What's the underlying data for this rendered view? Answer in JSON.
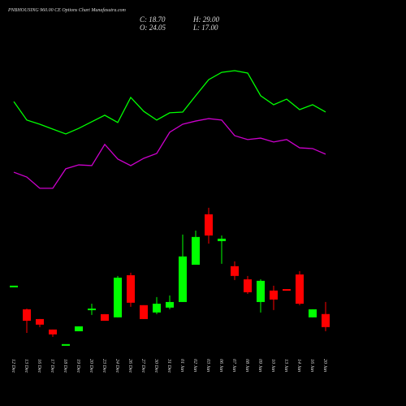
{
  "chart_data": {
    "type": "candlestick",
    "title": "PNBHOUSING 960.00 CE Options Chart Munafasutra.com",
    "header": [
      "C: 18.70",
      "H: 29.00",
      "O: 24.05",
      "L: 17.00"
    ],
    "categories": [
      "12 Dec",
      "13 Dec",
      "16 Dec",
      "17 Dec",
      "18 Dec",
      "19 Dec",
      "20 Dec",
      "23 Dec",
      "24 Dec",
      "26 Dec",
      "27 Dec",
      "30 Dec",
      "31 Dec",
      "01 Jan",
      "02 Jan",
      "03 Jan",
      "06 Jan",
      "07 Jan",
      "08 Jan",
      "09 Jan",
      "10 Jan",
      "13 Jan",
      "14 Jan",
      "16 Jan",
      "20 Jan"
    ],
    "open": [
      35.7,
      26,
      22,
      17.7,
      11.7,
      17,
      26.3,
      24,
      22.7,
      40,
      27.7,
      24.7,
      26.7,
      29,
      44.3,
      65,
      54,
      43.7,
      38.3,
      29,
      33.7,
      34.3,
      40.3,
      22.7,
      24.05
    ],
    "high": [
      35.7,
      26.3,
      22,
      17.7,
      11.7,
      19,
      28.3,
      24,
      39.7,
      41,
      27.7,
      31,
      31.7,
      56.7,
      58.3,
      67.7,
      56.3,
      45.7,
      39.7,
      38.3,
      35.7,
      34.3,
      41.7,
      26,
      29.0
    ],
    "low": [
      35.7,
      16.3,
      18.7,
      14.7,
      11.7,
      17,
      23.7,
      21.3,
      22.7,
      27,
      22,
      24,
      26,
      29,
      44.3,
      53,
      44.7,
      38,
      32.3,
      24.7,
      25.7,
      34,
      27.7,
      22.7,
      17.0
    ],
    "close": [
      35.7,
      21.3,
      19.7,
      15.7,
      11.7,
      19,
      26.3,
      21.3,
      39,
      28.7,
      22,
      28.3,
      29,
      47.7,
      55.7,
      56.3,
      55,
      39.7,
      33,
      37.7,
      30,
      34,
      28.3,
      26,
      18.7
    ],
    "up_color": "#00ff00",
    "down_color": "#ff0000",
    "lines": [
      {
        "color": "#00ff00",
        "values": [
          111.3,
          103.7,
          102,
          100,
          98,
          100.3,
          103,
          105.7,
          102.7,
          113,
          107.3,
          103.7,
          106.7,
          107,
          113.7,
          120.3,
          123.3,
          124,
          123,
          113.7,
          110,
          112.3,
          108,
          110,
          107
        ]
      },
      {
        "color": "#cc00cc",
        "values": [
          82.3,
          80.3,
          75.7,
          75.7,
          83.7,
          85.3,
          85,
          93.7,
          87.7,
          85,
          88,
          90,
          98.7,
          102,
          103.3,
          104.3,
          103.7,
          97.3,
          95.7,
          96.3,
          94.7,
          95.7,
          92.3,
          92,
          89.7
        ]
      }
    ],
    "ylim": [
      -13.7,
      153
    ]
  }
}
